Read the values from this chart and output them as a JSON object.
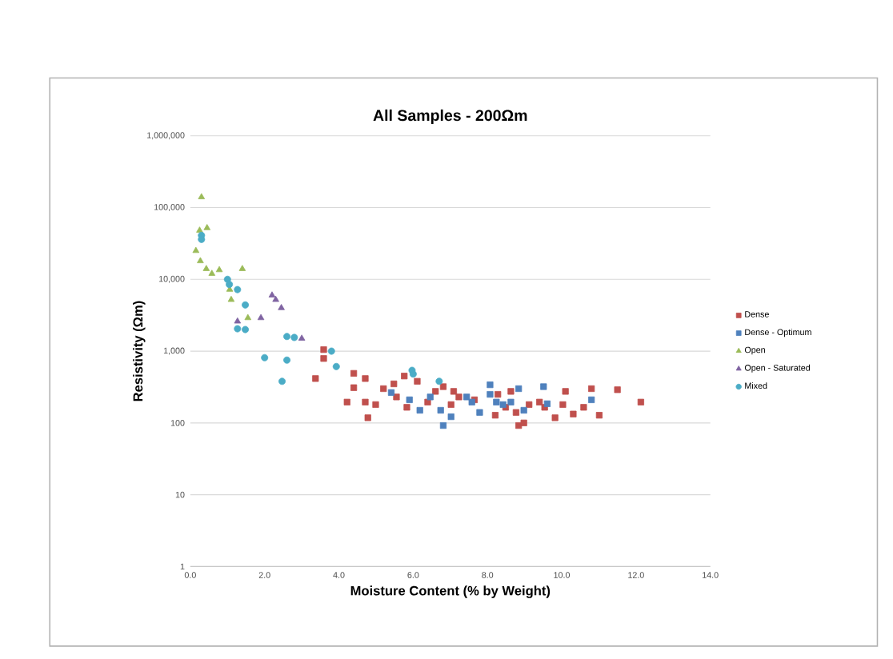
{
  "chart_data": {
    "type": "scatter",
    "title": "All Samples - 200Ωm",
    "xlabel": "Moisture Content (% by Weight)",
    "ylabel": "Resistivity (Ωm)",
    "xlim": [
      0,
      14
    ],
    "ylim": [
      1,
      1000000
    ],
    "log": "y",
    "grid": "y",
    "legend": "right",
    "xticks": [
      {
        "value": 0,
        "label": "0.0"
      },
      {
        "value": 2,
        "label": "2.0"
      },
      {
        "value": 4,
        "label": "4.0"
      },
      {
        "value": 6,
        "label": "6.0"
      },
      {
        "value": 8,
        "label": "8.0"
      },
      {
        "value": 10,
        "label": "10.0"
      },
      {
        "value": 12,
        "label": "12.0"
      },
      {
        "value": 14,
        "label": "14.0"
      }
    ],
    "yticks": [
      1,
      10,
      100,
      {
        "value": 1000,
        "label": "1,000"
      },
      {
        "value": 10000,
        "label": "10,000"
      },
      {
        "value": 100000,
        "label": "100,000"
      },
      {
        "value": 1000000,
        "label": "1,000,000"
      }
    ],
    "series": [
      {
        "name": "Dense",
        "color": "#c0504d",
        "marker": "square",
        "x": [
          3.59,
          3.59,
          3.37,
          4.4,
          4.71,
          4.4,
          4.22,
          4.71,
          4.99,
          4.78,
          5.2,
          5.48,
          5.76,
          6.11,
          5.55,
          5.83,
          6.39,
          6.6,
          6.81,
          7.09,
          7.02,
          7.23,
          7.65,
          8.21,
          8.28,
          8.49,
          8.77,
          8.84,
          8.98,
          8.63,
          9.12,
          9.4,
          9.54,
          9.82,
          10.1,
          10.03,
          10.31,
          10.59,
          10.8,
          11.01,
          11.5,
          12.13
        ],
        "values": [
          1050,
          790,
          415,
          490,
          415,
          310,
          195,
          195,
          180,
          118,
          300,
          350,
          450,
          380,
          230,
          165,
          195,
          275,
          320,
          275,
          180,
          230,
          210,
          128,
          250,
          165,
          140,
          92,
          100,
          275,
          180,
          195,
          165,
          118,
          275,
          180,
          133,
          165,
          300,
          128,
          290,
          195
        ]
      },
      {
        "name": "Dense - Optimum",
        "color": "#4f81bd",
        "marker": "square",
        "x": [
          5.41,
          5.9,
          6.18,
          6.46,
          6.7,
          6.74,
          6.81,
          7.02,
          7.44,
          7.58,
          7.79,
          8.07,
          8.07,
          8.24,
          8.42,
          8.63,
          8.84,
          8.98,
          9.51,
          9.61,
          10.8
        ],
        "values": [
          265,
          210,
          150,
          230,
          null,
          150,
          92,
          122,
          230,
          195,
          140,
          340,
          250,
          195,
          180,
          195,
          300,
          150,
          320,
          185,
          210
        ]
      },
      {
        "name": "Open",
        "color": "#9bbb59",
        "marker": "triangle",
        "x": [
          0.3,
          0.25,
          0.45,
          0.15,
          0.27,
          0.43,
          0.58,
          0.78,
          1.4,
          1.06,
          1.1,
          1.55
        ],
        "values": [
          140000,
          48000,
          52000,
          25000,
          18000,
          14000,
          12000,
          13500,
          14000,
          7200,
          5200,
          2900
        ]
      },
      {
        "name": "Open - Saturated",
        "color": "#8064a2",
        "marker": "triangle",
        "x": [
          2.2,
          2.3,
          2.45,
          1.9,
          1.27,
          2.8,
          3.0
        ],
        "values": [
          6000,
          5200,
          4000,
          2900,
          2600,
          null,
          1500
        ]
      },
      {
        "name": "Mixed",
        "color": "#4bacc6",
        "marker": "circle",
        "x": [
          0.3,
          0.3,
          1.0,
          1.05,
          1.27,
          1.48,
          1.27,
          1.48,
          2.6,
          2.8,
          2.0,
          2.6,
          2.47,
          3.8,
          3.93,
          5.97,
          6.0,
          6.7
        ],
        "values": [
          41000,
          36000,
          10000,
          8500,
          7200,
          4400,
          2050,
          2000,
          1600,
          1550,
          810,
          750,
          380,
          1000,
          610,
          540,
          480,
          380
        ]
      }
    ]
  }
}
